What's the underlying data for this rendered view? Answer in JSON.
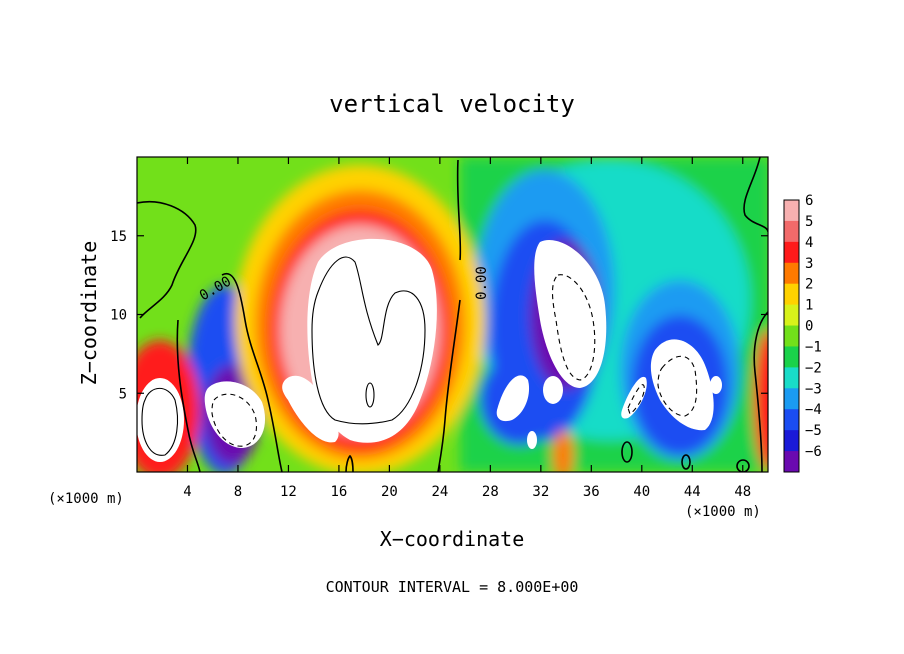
{
  "chart_data": {
    "type": "heatmap",
    "title": "vertical velocity",
    "xlabel": "X−coordinate",
    "ylabel": "Z−coordinate",
    "x_unit_left": "(×1000 m)",
    "x_unit_right": "(×1000 m)",
    "footer": "CONTOUR INTERVAL = 8.000E+00",
    "contour_label": "0.00",
    "contour_label_2": "0.00",
    "xlim": [
      0,
      50
    ],
    "ylim": [
      0,
      20
    ],
    "x_ticks": [
      4,
      8,
      12,
      16,
      20,
      24,
      28,
      32,
      36,
      40,
      44,
      48
    ],
    "y_ticks": [
      5,
      10,
      15
    ],
    "x_tick_labels": [
      "4",
      "8",
      "12",
      "16",
      "20",
      "24",
      "28",
      "32",
      "36",
      "40",
      "44",
      "48"
    ],
    "y_tick_labels": [
      "5",
      "10",
      "15"
    ],
    "colorbar": {
      "min": -6,
      "max": 6,
      "levels": [
        6,
        5,
        4,
        3,
        2,
        1,
        0,
        -1,
        -2,
        -3,
        -4,
        -5,
        -6
      ],
      "labels": [
        "6",
        "5",
        "4",
        "3",
        "2",
        "1",
        "0",
        "−1",
        "−2",
        "−3",
        "−4",
        "−5",
        "−6"
      ],
      "colors": [
        "#f7b0b0",
        "#f26a6a",
        "#ff1a1a",
        "#ff7a00",
        "#ffd200",
        "#d8f21a",
        "#72e01a",
        "#1ad24a",
        "#19dcc8",
        "#1a9bf2",
        "#1a4df2",
        "#1a1ad8",
        "#6a0ab0"
      ]
    },
    "features": [
      {
        "kind": "updraft",
        "x": 2.5,
        "z": 3.2,
        "peak": 10,
        "label": "left-edge updraft"
      },
      {
        "kind": "downdraft",
        "x": 7.5,
        "z": 3.5,
        "peak": -10,
        "label": "shallow downdraft"
      },
      {
        "kind": "updraft",
        "x": 17.5,
        "z": 9.5,
        "peak": 14,
        "label": "main updraft"
      },
      {
        "kind": "updraft",
        "x": 14.0,
        "z": 4.0,
        "peak": 8,
        "label": "secondary updraft"
      },
      {
        "kind": "downdraft",
        "x": 34.0,
        "z": 11.0,
        "peak": -12,
        "label": "upper downdraft"
      },
      {
        "kind": "downdraft",
        "x": 30.5,
        "z": 4.5,
        "peak": -9,
        "label": "low downdraft"
      },
      {
        "kind": "downdraft",
        "x": 43.0,
        "z": 5.5,
        "peak": -10,
        "label": "right downdraft"
      },
      {
        "kind": "updraft",
        "x": 49.8,
        "z": 4.5,
        "peak": 6,
        "label": "right-edge updraft"
      },
      {
        "kind": "updraft",
        "x": 33.5,
        "z": 1.2,
        "peak": 4,
        "label": "surface updraft"
      }
    ]
  }
}
